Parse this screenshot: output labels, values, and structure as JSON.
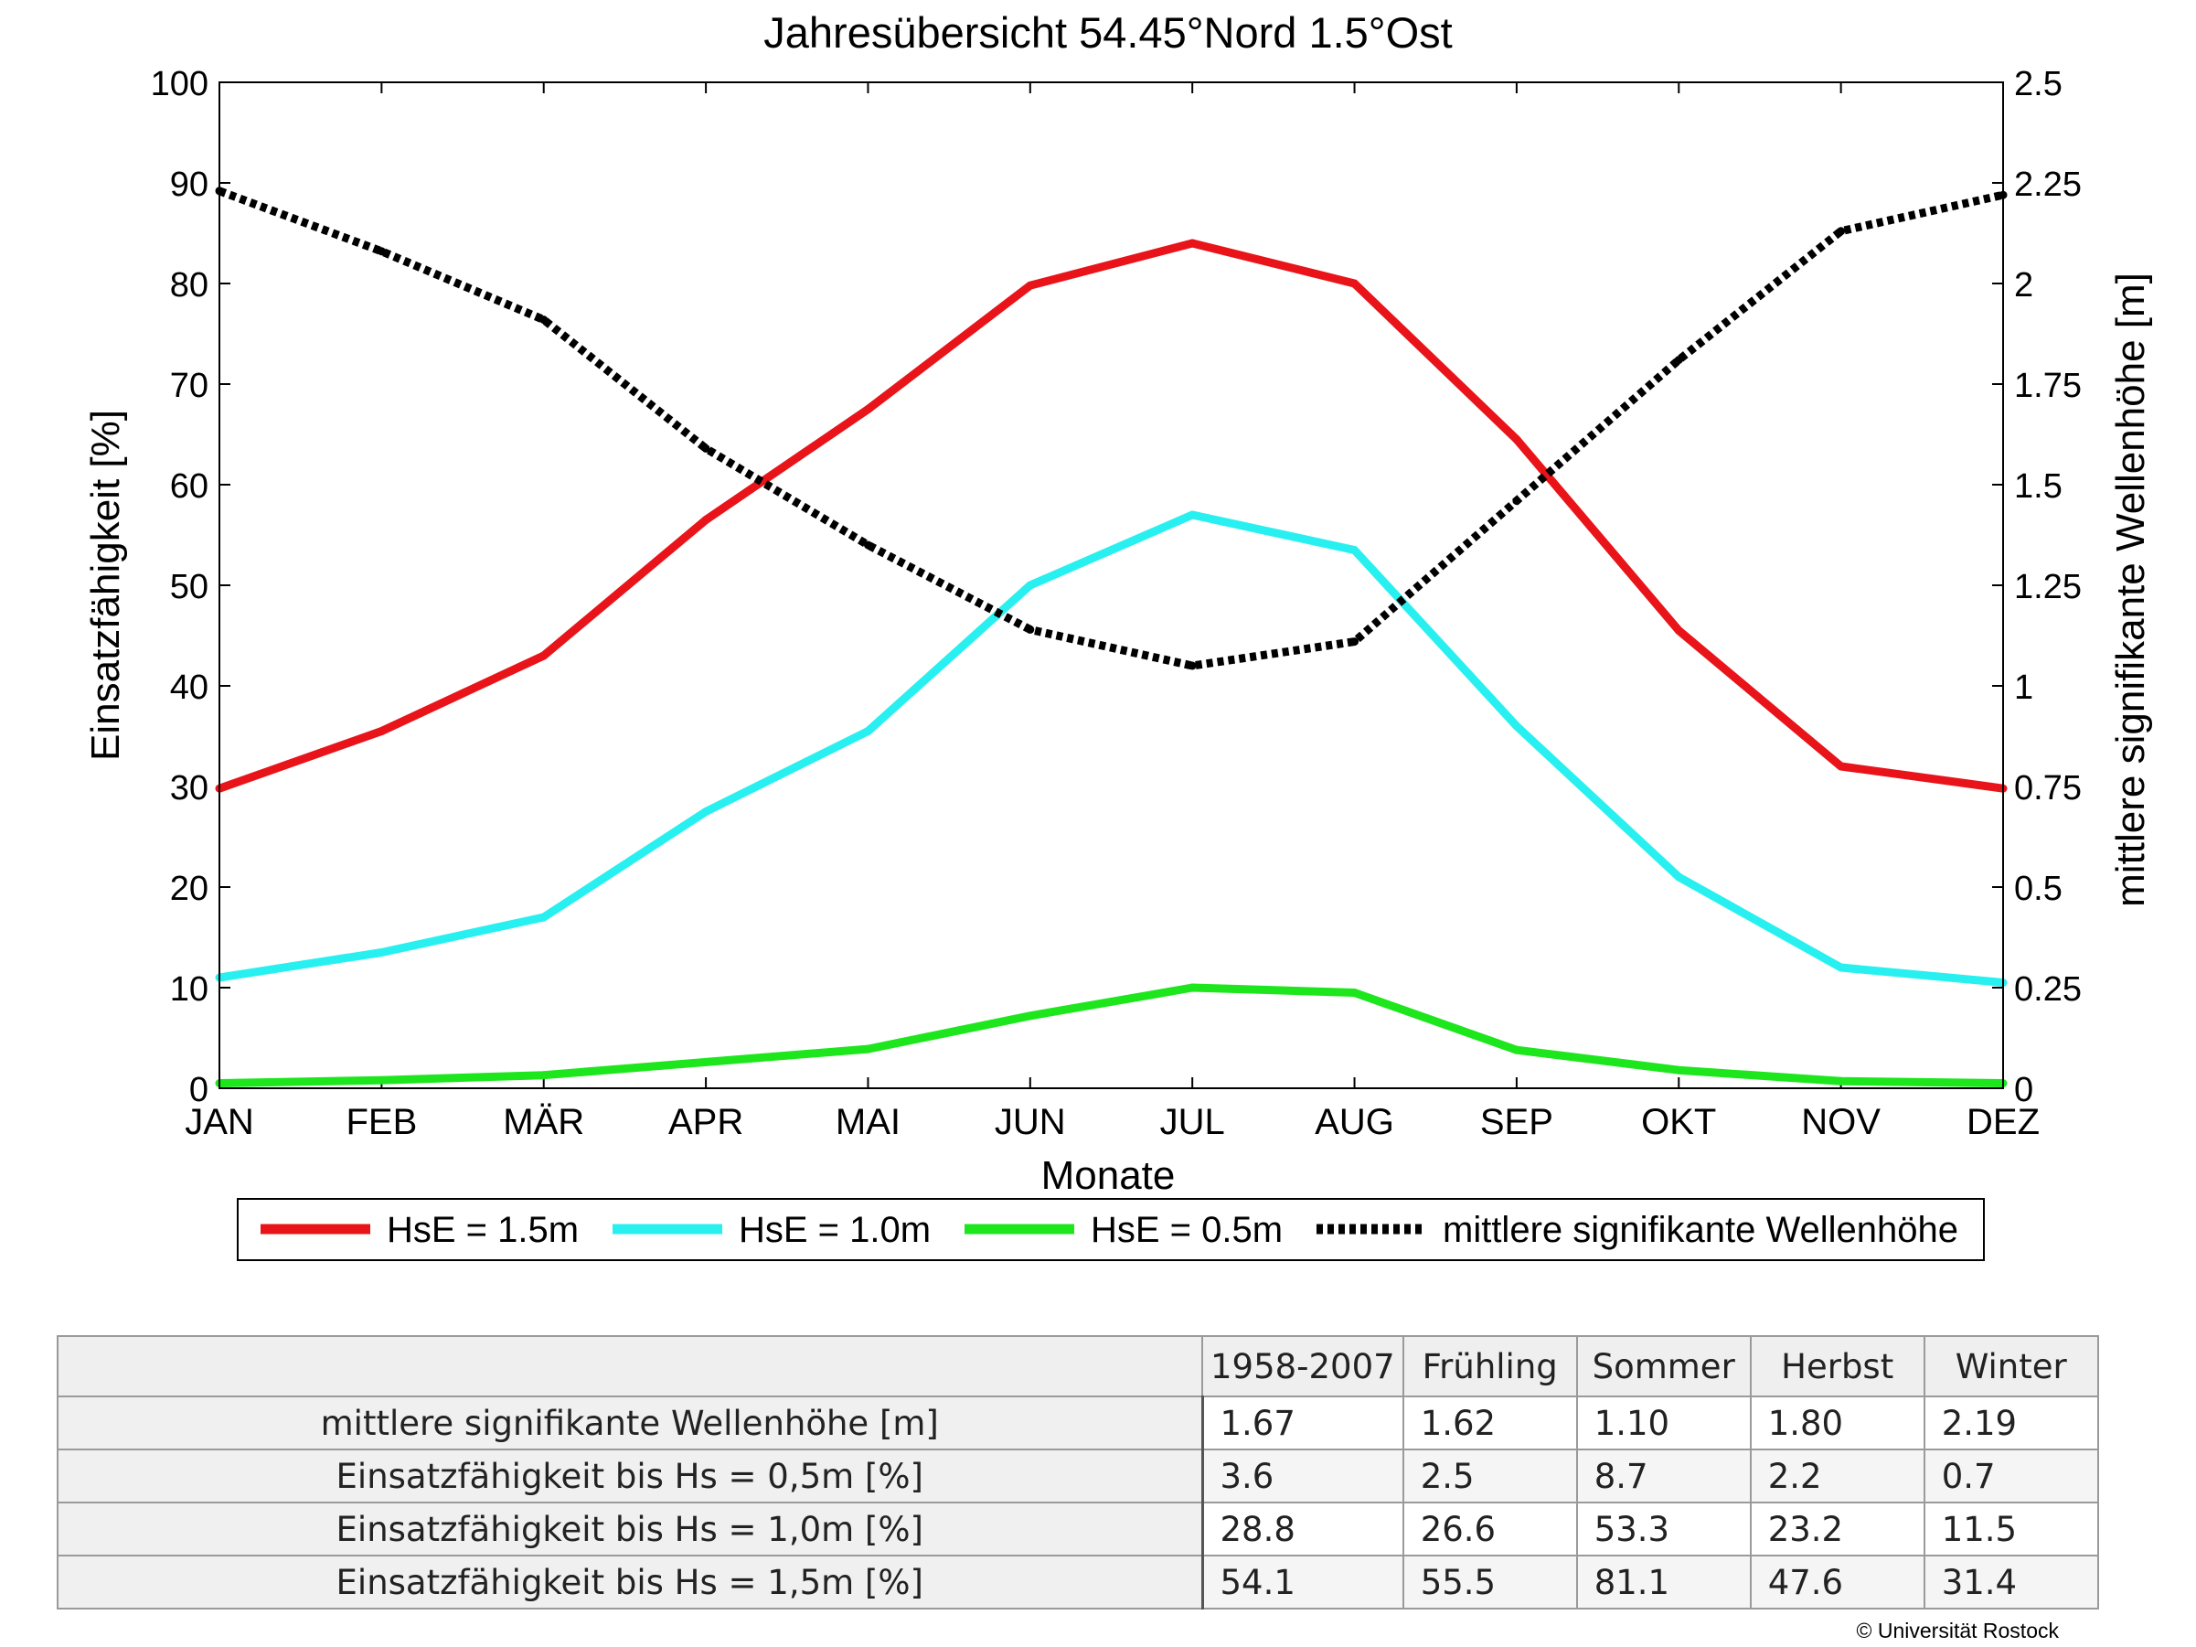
{
  "chart_data": {
    "type": "line",
    "title": "Jahresübersicht  54.45°Nord  1.5°Ost",
    "xlabel": "Monate",
    "ylabel": "Einsatzfähigkeit [%]",
    "y2label": "mittlere signifikante Wellenhöhe [m]",
    "categories": [
      "JAN",
      "FEB",
      "MÄR",
      "APR",
      "MAI",
      "JUN",
      "JUL",
      "AUG",
      "SEP",
      "OKT",
      "NOV",
      "DEZ"
    ],
    "ylim": [
      0,
      100
    ],
    "yticks": [
      "0",
      "10",
      "20",
      "30",
      "40",
      "50",
      "60",
      "70",
      "80",
      "90",
      "100"
    ],
    "y2lim": [
      0,
      2.5
    ],
    "y2ticks": [
      "0",
      "0.25",
      "0.5",
      "0.75",
      "1",
      "1.25",
      "1.5",
      "1.75",
      "2",
      "2.25",
      "2.5"
    ],
    "grid": false,
    "legend_position": "bottom",
    "series": [
      {
        "name": "HsE = 1.5m",
        "axis": "left",
        "color": "#e8141a",
        "style": "solid",
        "values": [
          29.8,
          35.5,
          43.0,
          56.5,
          67.5,
          79.8,
          84.0,
          80.0,
          64.5,
          45.5,
          32.0,
          29.8
        ]
      },
      {
        "name": "HsE = 1.0m",
        "axis": "left",
        "color": "#29f0f0",
        "style": "solid",
        "values": [
          11.0,
          13.5,
          17.0,
          27.5,
          35.5,
          50.0,
          57.0,
          53.5,
          36.0,
          21.0,
          12.0,
          10.5
        ]
      },
      {
        "name": "HsE = 0.5m",
        "axis": "left",
        "color": "#1de61d",
        "style": "solid",
        "values": [
          0.5,
          0.8,
          1.3,
          2.6,
          3.9,
          7.2,
          10.0,
          9.5,
          3.8,
          1.8,
          0.7,
          0.5
        ]
      },
      {
        "name": "mittlere signifikante Wellenhöhe",
        "axis": "right",
        "color": "#000000",
        "style": "dotted",
        "values": [
          2.23,
          2.08,
          1.91,
          1.59,
          1.35,
          1.14,
          1.05,
          1.11,
          1.46,
          1.81,
          2.13,
          2.22
        ]
      }
    ]
  },
  "table": {
    "columns": [
      "1958-2007",
      "Frühling",
      "Sommer",
      "Herbst",
      "Winter"
    ],
    "rows": [
      {
        "label": "mittlere signifikante Wellenhöhe [m]",
        "values": [
          "1.67",
          "1.62",
          "1.10",
          "1.80",
          "2.19"
        ]
      },
      {
        "label": "Einsatzfähigkeit bis Hs = 0,5m [%]",
        "values": [
          "3.6",
          "2.5",
          "8.7",
          "2.2",
          "0.7"
        ]
      },
      {
        "label": "Einsatzfähigkeit bis Hs = 1,0m [%]",
        "values": [
          "28.8",
          "26.6",
          "53.3",
          "23.2",
          "11.5"
        ]
      },
      {
        "label": "Einsatzfähigkeit bis Hs = 1,5m [%]",
        "values": [
          "54.1",
          "55.5",
          "81.1",
          "47.6",
          "31.4"
        ]
      }
    ]
  },
  "copyright": "© Universität Rostock"
}
